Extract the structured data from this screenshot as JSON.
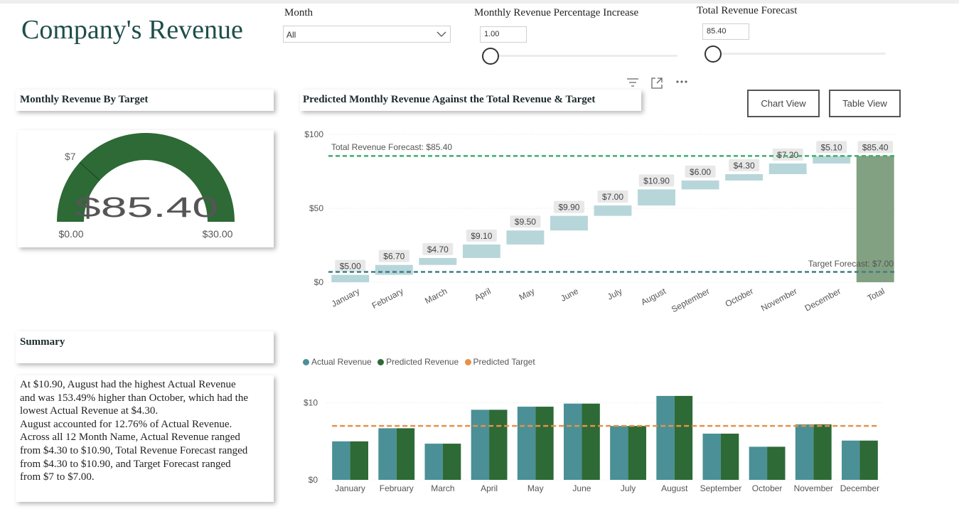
{
  "title": "Company's Revenue",
  "filters": {
    "month": {
      "label": "Month",
      "value": "All"
    },
    "pct_increase": {
      "label": "Monthly Revenue Percentage Increase",
      "value": "1.00",
      "slider_level": 0
    },
    "forecast": {
      "label": "Total Revenue Forecast",
      "value": "85.40",
      "slider_level": 0
    }
  },
  "visual_header": {
    "icons": [
      "filter-icon",
      "focus-mode-icon",
      "more-options-icon"
    ]
  },
  "gauge": {
    "title": "Monthly Revenue By Target",
    "value_label": "$85.40",
    "min_label": "$0.00",
    "max_label": "$30.00",
    "target_label": "$7",
    "value": 85.4,
    "min": 0,
    "max": 30,
    "target": 7,
    "color": "#2d6a36"
  },
  "view_buttons": {
    "chart": "Chart View",
    "table": "Table View"
  },
  "waterfall": {
    "title": "Predicted Monthly Revenue Against the Total Revenue & Target",
    "forecast_line_label": "Total Revenue Forecast: $85.40",
    "target_line_label": "Target Forecast: $7.00",
    "colors": {
      "step": "#b7d6d9",
      "total": "#82a182",
      "forecast_line": "#3fae6c",
      "target_line": "#3f7f86"
    }
  },
  "summary": {
    "title": "Summary",
    "lines": [
      "At $10.90, August had the highest Actual Revenue",
      "and was 153.49% higher than October, which had the",
      "lowest Actual Revenue at $4.30.",
      "August accounted for 12.76% of Actual Revenue.",
      "Across all 12 Month Name, Actual Revenue ranged",
      "from $4.30 to $10.90, Total Revenue Forecast ranged",
      "from $4.30 to $10.90, and Target Forecast ranged",
      "from $7 to $7.00."
    ]
  },
  "bar_legend": [
    {
      "name": "Actual Revenue",
      "color": "#4a9096"
    },
    {
      "name": "Predicted Revenue",
      "color": "#2d6a36"
    },
    {
      "name": "Predicted Target",
      "color": "#e6914a"
    }
  ],
  "chart_data": [
    {
      "type": "waterfall",
      "categories": [
        "January",
        "February",
        "March",
        "April",
        "May",
        "June",
        "July",
        "August",
        "September",
        "October",
        "November",
        "December"
      ],
      "values": [
        5.0,
        6.7,
        4.7,
        9.1,
        9.5,
        9.9,
        7.0,
        10.9,
        6.0,
        4.3,
        7.2,
        5.1
      ],
      "data_labels": [
        "$5.00",
        "$6.70",
        "$4.70",
        "$9.10",
        "$9.50",
        "$9.90",
        "$7.00",
        "$10.90",
        "$6.00",
        "$4.30",
        "$7.20",
        "$5.10"
      ],
      "total": {
        "label": "Total",
        "value": 85.4,
        "data_label": "$85.40"
      },
      "forecast_line": 85.4,
      "target_line": 7.0,
      "ylim": [
        0,
        100
      ],
      "yticks": [
        0,
        50,
        100
      ],
      "ytick_labels": [
        "$0",
        "$50",
        "$100"
      ],
      "grid": true
    },
    {
      "type": "bar",
      "categories": [
        "January",
        "February",
        "March",
        "April",
        "May",
        "June",
        "July",
        "August",
        "September",
        "October",
        "November",
        "December"
      ],
      "series": [
        {
          "name": "Actual Revenue",
          "values": [
            5.0,
            6.7,
            4.7,
            9.1,
            9.5,
            9.9,
            7.0,
            10.9,
            6.0,
            4.3,
            7.2,
            5.1
          ]
        },
        {
          "name": "Predicted Revenue",
          "values": [
            5.0,
            6.7,
            4.7,
            9.1,
            9.5,
            9.9,
            7.0,
            10.9,
            6.0,
            4.3,
            7.2,
            5.1
          ]
        },
        {
          "name": "Predicted Target",
          "type": "line",
          "values": [
            7,
            7,
            7,
            7,
            7,
            7,
            7,
            7,
            7,
            7,
            7,
            7
          ]
        }
      ],
      "ylim": [
        0,
        12
      ],
      "yticks": [
        0,
        10
      ],
      "ytick_labels": [
        "$0",
        "$10"
      ],
      "legend": "top-left",
      "grid": true
    }
  ]
}
